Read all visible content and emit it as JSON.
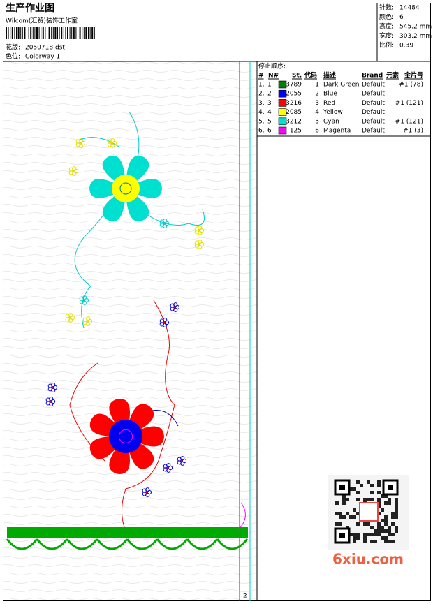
{
  "header": {
    "title": "生产作业图",
    "company": "Wilcom(汇贸)装饰工作室",
    "design_label": "花版:",
    "design": "2050718.dst",
    "colorway_label": "色位:",
    "colorway": "Colorway 1"
  },
  "stats": [
    {
      "label": "针数:",
      "value": "14484"
    },
    {
      "label": "颜色:",
      "value": "6"
    },
    {
      "label": "高度:",
      "value": "545.2 mm"
    },
    {
      "label": "宽度:",
      "value": "303.2 mm"
    },
    {
      "label": "比例:",
      "value": "0.39"
    }
  ],
  "stop_sequence": {
    "title": "停止顺序:",
    "columns": [
      "#",
      "N#",
      "St.",
      "代码",
      "描述",
      "Brand",
      "元素",
      "金片号"
    ],
    "rows": [
      {
        "num": "1.",
        "n": "1",
        "color": "#008000",
        "stitches": "3789",
        "code": "1",
        "description": "Dark Green",
        "brand": "Default",
        "sequin": "#1 (78)"
      },
      {
        "num": "2.",
        "n": "2",
        "color": "#0000ff",
        "stitches": "2055",
        "code": "2",
        "description": "Blue",
        "brand": "Default"
      },
      {
        "num": "3.",
        "n": "3",
        "color": "#ff0000",
        "stitches": "3216",
        "code": "3",
        "description": "Red",
        "brand": "Default",
        "sequin": "#1 (121)"
      },
      {
        "num": "4.",
        "n": "4",
        "color": "#ffff00",
        "stitches": "2085",
        "code": "4",
        "description": "Yellow",
        "brand": "Default"
      },
      {
        "num": "5.",
        "n": "5",
        "color": "#00e0d0",
        "stitches": "3212",
        "code": "5",
        "description": "Cyan",
        "brand": "Default",
        "sequin": "#1 (121)"
      },
      {
        "num": "6.",
        "n": "6",
        "color": "#ff00ff",
        "stitches": "125",
        "code": "6",
        "description": "Magenta",
        "brand": "Default",
        "sequin": "#1 (3)"
      }
    ]
  },
  "marker": "2",
  "watermark": "6xiu.com"
}
